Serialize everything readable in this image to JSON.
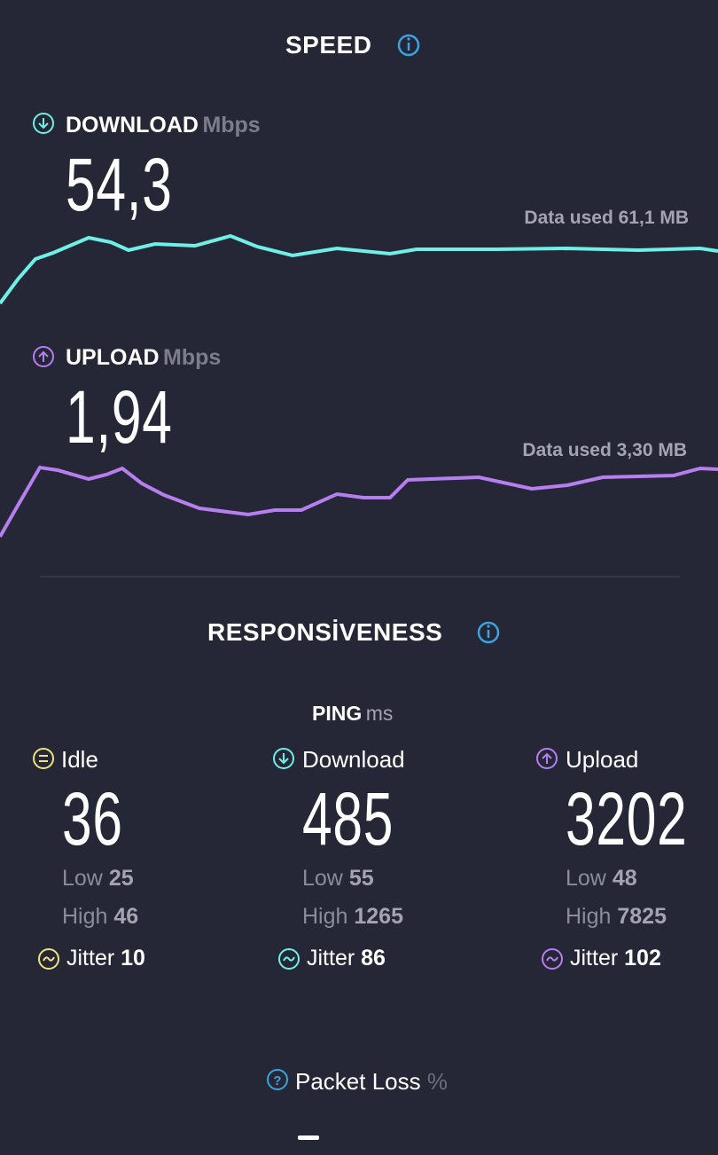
{
  "speed": {
    "title": "SPEED",
    "download": {
      "label": "DOWNLOAD",
      "unit": "Mbps",
      "value": "54,3",
      "data_used": "Data used 61,1 MB"
    },
    "upload": {
      "label": "UPLOAD",
      "unit": "Mbps",
      "value": "1,94",
      "data_used": "Data used 3,30 MB"
    }
  },
  "responsiveness": {
    "title": "RESPONSİVENESS",
    "ping": {
      "label": "PING",
      "unit": "ms"
    },
    "columns": [
      {
        "name": "Idle",
        "value": "36",
        "low_label": "Low",
        "low": "25",
        "high_label": "High",
        "high": "46",
        "jitter_label": "Jitter",
        "jitter": "10"
      },
      {
        "name": "Download",
        "value": "485",
        "low_label": "Low",
        "low": "55",
        "high_label": "High",
        "high": "1265",
        "jitter_label": "Jitter",
        "jitter": "86"
      },
      {
        "name": "Upload",
        "value": "3202",
        "low_label": "Low",
        "low": "48",
        "high_label": "High",
        "high": "7825",
        "jitter_label": "Jitter",
        "jitter": "102"
      }
    ]
  },
  "packet_loss": {
    "label": "Packet Loss",
    "unit": "%"
  }
}
